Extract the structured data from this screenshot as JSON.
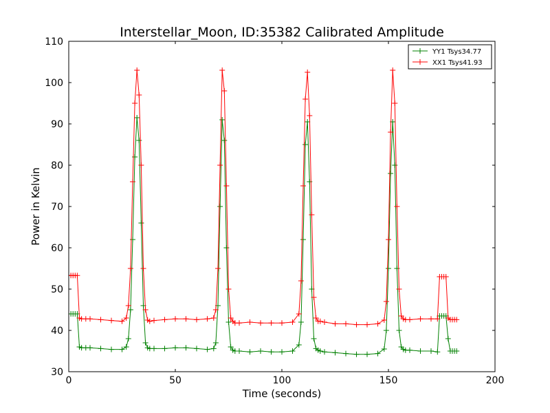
{
  "chart_data": {
    "type": "line",
    "title": "Interstellar_Moon, ID:35382 Calibrated Amplitude",
    "xlabel": "Time (seconds)",
    "ylabel": "Power in Kelvin",
    "xlim": [
      0,
      200
    ],
    "ylim": [
      30,
      110
    ],
    "xticks": [
      0,
      50,
      100,
      150,
      200
    ],
    "yticks": [
      30,
      40,
      50,
      60,
      70,
      80,
      90,
      100,
      110
    ],
    "grid": false,
    "legend_position": "top-right",
    "marker": "plus",
    "series": [
      {
        "name": "YY1 Tsys34.77",
        "color": "#008000",
        "x": [
          0,
          1,
          2,
          3,
          4,
          5,
          6,
          8,
          10,
          15,
          20,
          25,
          27,
          28,
          29,
          30,
          31,
          32,
          33,
          34,
          35,
          36,
          37,
          38,
          40,
          45,
          50,
          55,
          60,
          65,
          68,
          69,
          70,
          71,
          72,
          73,
          74,
          75,
          76,
          77,
          78,
          80,
          85,
          90,
          95,
          100,
          105,
          108,
          109,
          110,
          111,
          112,
          113,
          114,
          115,
          116,
          117,
          118,
          120,
          125,
          130,
          135,
          140,
          145,
          148,
          149,
          150,
          151,
          152,
          153,
          154,
          155,
          156,
          157,
          158,
          160,
          165,
          170,
          173,
          174,
          175,
          176,
          177,
          178,
          179,
          180,
          181,
          182
        ],
        "y": [
          44,
          44,
          44,
          44,
          44,
          36,
          35.8,
          35.8,
          35.8,
          35.6,
          35.4,
          35.4,
          36,
          38,
          45,
          62,
          82,
          91.5,
          86,
          66,
          46,
          37,
          35.8,
          35.6,
          35.6,
          35.6,
          35.8,
          35.8,
          35.6,
          35.4,
          35.6,
          37,
          46,
          70,
          91,
          86,
          60,
          42,
          36,
          35.2,
          35,
          35,
          34.8,
          35,
          34.8,
          34.8,
          35,
          36.5,
          42,
          62,
          85,
          90.5,
          76,
          50,
          38,
          35.6,
          35.2,
          35,
          34.8,
          34.6,
          34.4,
          34.2,
          34.2,
          34.4,
          35.5,
          40,
          55,
          78,
          90.5,
          80,
          55,
          40,
          36,
          35.4,
          35.2,
          35.2,
          35,
          35,
          34.8,
          43.5,
          43.5,
          43.5,
          43.5,
          38,
          35,
          35,
          35,
          35
        ]
      },
      {
        "name": "XX1 Tsys41.93",
        "color": "#ff0000",
        "x": [
          0,
          1,
          2,
          3,
          4,
          5,
          6,
          8,
          10,
          15,
          20,
          25,
          27,
          28,
          29,
          30,
          31,
          32,
          33,
          34,
          35,
          36,
          37,
          38,
          40,
          45,
          50,
          55,
          60,
          65,
          68,
          69,
          70,
          71,
          72,
          73,
          74,
          75,
          76,
          77,
          78,
          80,
          85,
          90,
          95,
          100,
          105,
          108,
          109,
          110,
          111,
          112,
          113,
          114,
          115,
          116,
          117,
          118,
          120,
          125,
          130,
          135,
          140,
          145,
          148,
          149,
          150,
          151,
          152,
          153,
          154,
          155,
          156,
          157,
          158,
          160,
          165,
          170,
          173,
          174,
          175,
          176,
          177,
          178,
          179,
          180,
          181,
          182
        ],
        "y": [
          53.3,
          53.3,
          53.3,
          53.3,
          53.3,
          43,
          42.8,
          42.8,
          42.8,
          42.6,
          42.4,
          42.2,
          43,
          46,
          55,
          76,
          95,
          103,
          97,
          80,
          55,
          45,
          42.5,
          42.2,
          42.4,
          42.6,
          42.8,
          42.8,
          42.6,
          42.8,
          43,
          45,
          55,
          80,
          103,
          98,
          75,
          50,
          43,
          42.2,
          41.8,
          41.8,
          42,
          41.8,
          41.8,
          41.8,
          42,
          44,
          52,
          75,
          96,
          102.5,
          92,
          68,
          48,
          43,
          42.2,
          42.2,
          42,
          41.6,
          41.6,
          41.4,
          41.4,
          41.6,
          42.5,
          47,
          62,
          88,
          103,
          95,
          70,
          50,
          43.5,
          42.8,
          42.6,
          42.6,
          42.8,
          42.8,
          42.8,
          53,
          53,
          53,
          53,
          43,
          42.6,
          42.6,
          42.6,
          42.6
        ]
      }
    ]
  }
}
